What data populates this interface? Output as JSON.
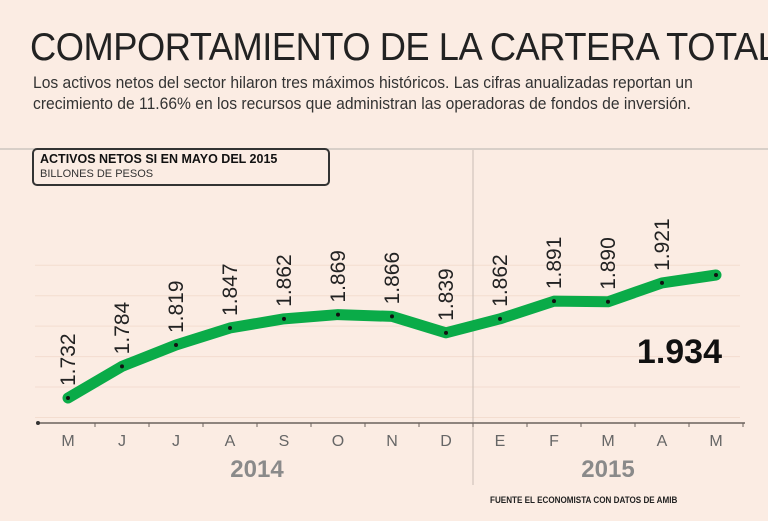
{
  "title": "COMPORTAMIENTO DE LA CARTERA TOTAL",
  "subtitle": "Los activos netos del sector hilaron tres máximos históricos. Las cifras anualizadas reportan un crecimiento de 11.66% en los recursos que administran las operadoras de fondos de inversión.",
  "source": "FUENTE EL ECONOMISTA CON DATOS DE AMIB",
  "chart_data": {
    "type": "line",
    "title": "ACTIVOS NETOS SI EN MAYO DEL 2015",
    "ylabel": "BILLONES DE PESOS",
    "categories": [
      "M",
      "J",
      "J",
      "A",
      "S",
      "O",
      "N",
      "D",
      "E",
      "F",
      "M",
      "A",
      "M"
    ],
    "years": [
      {
        "label": "2014",
        "months": 8
      },
      {
        "label": "2015",
        "months": 5
      }
    ],
    "values": [
      1.732,
      1.784,
      1.819,
      1.847,
      1.862,
      1.869,
      1.866,
      1.839,
      1.862,
      1.891,
      1.89,
      1.921,
      1.934
    ],
    "labels": [
      "1.732",
      "1.784",
      "1.819",
      "1.847",
      "1.862",
      "1.869",
      "1.866",
      "1.839",
      "1.862",
      "1.891",
      "1.890",
      "1.921",
      "1.934"
    ],
    "highlight_label": "1.934",
    "ylim": [
      1.7,
      1.97
    ],
    "grid": true,
    "line_color": "#0aab48",
    "year_color": "#8a8a8a"
  }
}
